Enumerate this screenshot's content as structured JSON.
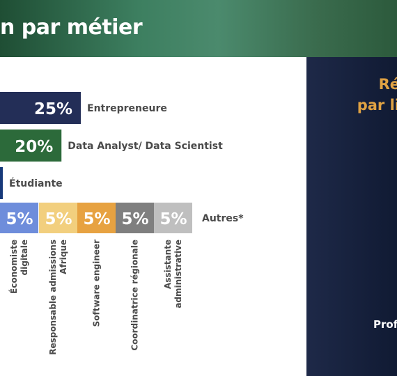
{
  "header": {
    "title_fragment": "n par métier"
  },
  "right_panel": {
    "title_line1": "Ré",
    "title_line2": "par li",
    "subtitle": "Prof"
  },
  "colors": {
    "navy": "#232e57",
    "green": "#2c6a3a",
    "blue": "#17397a",
    "lightblue": "#6e8ddb",
    "yellow": "#f2cf7e",
    "orange": "#e7a241",
    "gray": "#7f7f7f",
    "lightgray": "#bfbfbf",
    "label": "#4a4a4a"
  },
  "chart_data": {
    "type": "bar",
    "title": "",
    "main_bars": [
      {
        "label": "Entrepreneure",
        "value": 25,
        "value_label": "25%",
        "color": "#232e57"
      },
      {
        "label": "Data Analyst/ Data Scientist",
        "value": 20,
        "value_label": "20%",
        "color": "#2c6a3a"
      },
      {
        "label": "Étudiante",
        "value": 5,
        "value_label": "",
        "color": "#17397a"
      }
    ],
    "autres": {
      "label": "Autres*",
      "segments": [
        {
          "label": "Économiste digitale",
          "lines": [
            "Économiste",
            "digitale"
          ],
          "value": 5,
          "value_label": "5%",
          "color": "#6e8ddb"
        },
        {
          "label": "Responsable admissions Afrique",
          "lines": [
            "Responsable admissions",
            "Afrique"
          ],
          "value": 5,
          "value_label": "5%",
          "color": "#f2cf7e"
        },
        {
          "label": "Software engineer",
          "lines": [
            "Software engineer"
          ],
          "value": 5,
          "value_label": "5%",
          "color": "#e7a241"
        },
        {
          "label": "Coordinatrice régionale",
          "lines": [
            "Coordinatrice régionale"
          ],
          "value": 5,
          "value_label": "5%",
          "color": "#7f7f7f"
        },
        {
          "label": "Assistante administrative",
          "lines": [
            "Assistante",
            "administrative"
          ],
          "value": 5,
          "value_label": "5%",
          "color": "#bfbfbf"
        }
      ]
    }
  }
}
